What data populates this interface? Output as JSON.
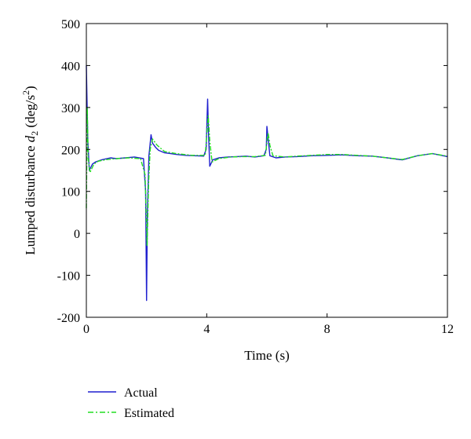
{
  "chart_data": {
    "type": "line",
    "title": "",
    "xlabel": "Time (s)",
    "ylabel_main": "Lumped disturbance ",
    "ylabel_symbol": "d",
    "ylabel_subscript": "2",
    "ylabel_unit_open": " (deg/s",
    "ylabel_unit_power": "2",
    "ylabel_unit_close": ")",
    "xlim": [
      0,
      12
    ],
    "ylim": [
      -200,
      500
    ],
    "xticks": [
      0,
      4,
      8,
      12
    ],
    "yticks": [
      -200,
      -100,
      0,
      100,
      200,
      300,
      400,
      500
    ],
    "grid": false,
    "legend_position": "bottom-left-outside",
    "series": [
      {
        "name": "Actual",
        "color": "#1f1fcf",
        "style": "solid",
        "x": [
          0,
          0.02,
          0.05,
          0.1,
          0.2,
          0.3,
          0.5,
          0.8,
          1.0,
          1.3,
          1.6,
          1.9,
          1.97,
          2.0,
          2.03,
          2.08,
          2.15,
          2.2,
          2.3,
          2.4,
          2.6,
          2.8,
          3.0,
          3.3,
          3.6,
          3.9,
          3.98,
          4.03,
          4.06,
          4.1,
          4.2,
          4.4,
          4.7,
          5.0,
          5.3,
          5.6,
          5.9,
          5.98,
          6.0,
          6.05,
          6.1,
          6.3,
          6.6,
          7.0,
          7.5,
          8.0,
          8.5,
          9.0,
          9.5,
          10.0,
          10.5,
          11.0,
          11.5,
          12.0
        ],
        "y": [
          400,
          320,
          220,
          150,
          165,
          170,
          175,
          180,
          178,
          180,
          182,
          178,
          100,
          -160,
          50,
          185,
          235,
          215,
          205,
          198,
          192,
          190,
          188,
          186,
          185,
          184,
          200,
          320,
          240,
          160,
          175,
          180,
          182,
          183,
          184,
          182,
          185,
          200,
          255,
          220,
          185,
          180,
          182,
          183,
          185,
          186,
          187,
          185,
          184,
          180,
          175,
          185,
          190,
          183
        ]
      },
      {
        "name": "Estimated",
        "color": "#22dd22",
        "style": "dashdot",
        "x": [
          0,
          0.03,
          0.06,
          0.12,
          0.25,
          0.4,
          0.7,
          1.0,
          1.4,
          1.8,
          1.95,
          2.02,
          2.07,
          2.12,
          2.2,
          2.35,
          2.6,
          3.0,
          3.5,
          3.95,
          4.05,
          4.1,
          4.18,
          4.4,
          4.8,
          5.2,
          5.6,
          5.95,
          6.04,
          6.1,
          6.2,
          6.6,
          7.0,
          7.5,
          8.0,
          8.5,
          9.0,
          9.5,
          10.0,
          10.5,
          11.0,
          11.5,
          12.0
        ],
        "y": [
          60,
          300,
          180,
          145,
          165,
          172,
          176,
          178,
          180,
          178,
          140,
          -30,
          120,
          200,
          225,
          210,
          195,
          190,
          186,
          186,
          280,
          220,
          170,
          178,
          182,
          183,
          183,
          186,
          240,
          210,
          185,
          182,
          184,
          186,
          188,
          188,
          186,
          184,
          180,
          176,
          185,
          190,
          184
        ]
      }
    ]
  }
}
